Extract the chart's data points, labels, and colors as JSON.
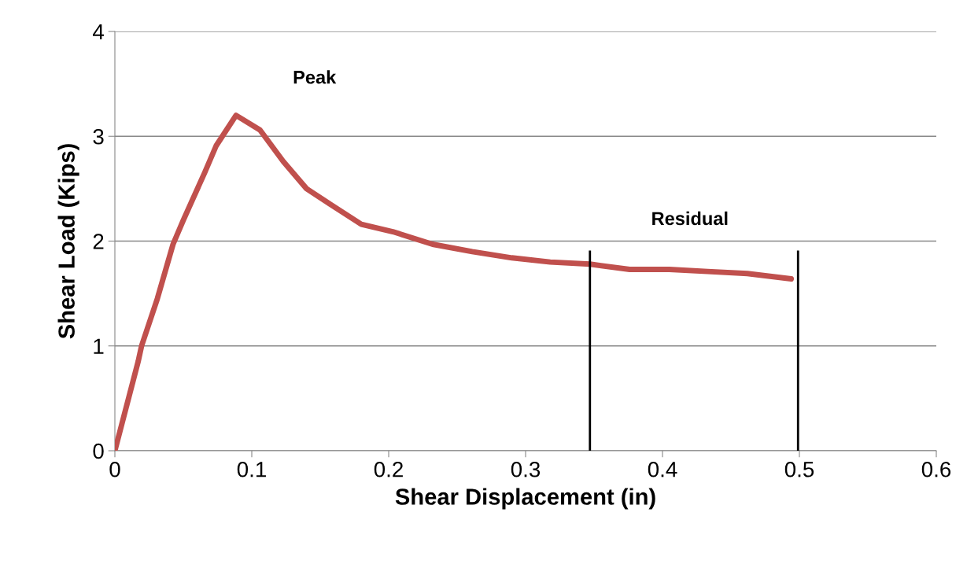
{
  "chart_data": {
    "type": "line",
    "xlabel": "Shear Displacement (in)",
    "ylabel": "Shear Load (Kips)",
    "xlim": [
      0,
      0.6
    ],
    "xticks": [
      0,
      0.1,
      0.2,
      0.3,
      0.4,
      0.5,
      0.6
    ],
    "ylim": [
      0,
      4
    ],
    "yticks": [
      0,
      1,
      2,
      3,
      4
    ],
    "grid": "y",
    "legend": false,
    "series": [
      {
        "color": "#c0504d",
        "x": [
          0,
          0.008,
          0.017,
          0.0195,
          0.031,
          0.0425,
          0.05,
          0.0655,
          0.074,
          0.0885,
          0.106,
          0.123,
          0.14,
          0.1575,
          0.18,
          0.203,
          0.232,
          0.261,
          0.29,
          0.318,
          0.347,
          0.376,
          0.405,
          0.433,
          0.462,
          0.494
        ],
        "values": [
          0,
          0.4,
          0.85,
          1.0,
          1.45,
          1.97,
          2.2,
          2.65,
          2.91,
          3.2,
          3.06,
          2.76,
          2.5,
          2.35,
          2.16,
          2.09,
          1.97,
          1.9,
          1.84,
          1.8,
          1.78,
          1.73,
          1.73,
          1.71,
          1.69,
          1.64
        ]
      }
    ],
    "ref_lines": [
      {
        "axis": "x",
        "value": 0.347,
        "color": "#000000"
      },
      {
        "axis": "x",
        "value": 0.499,
        "color": "#000000"
      }
    ],
    "annotations": [
      "Peak",
      "Residual"
    ]
  }
}
